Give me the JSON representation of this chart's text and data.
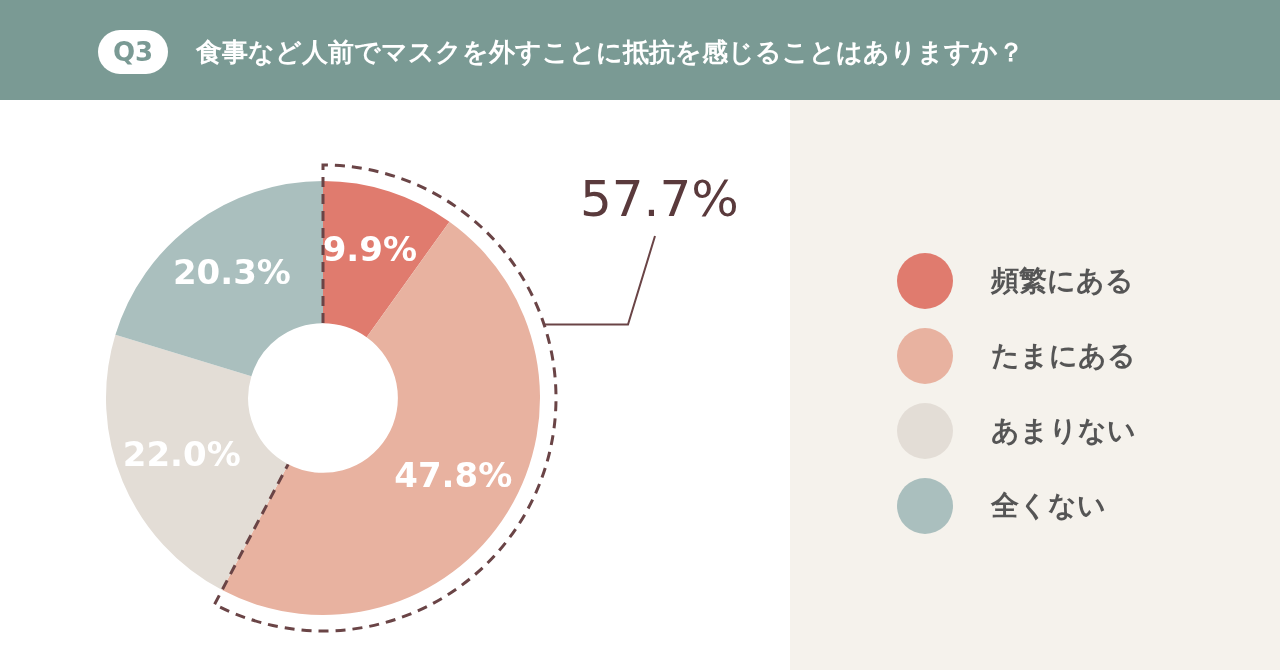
{
  "chart_data": {
    "type": "donut",
    "title": "食事など人前でマスクを外すことに抵抗を感じることはありますか？",
    "subtitle": "Q3",
    "categories": [
      "頻繁にある",
      "たまにある",
      "あまりない",
      "全くない"
    ],
    "values": [
      9.9,
      47.8,
      22.0,
      20.3
    ],
    "colors": [
      "#e07b6e",
      "#e8b2a0",
      "#e3ddd6",
      "#aabfbe"
    ],
    "value_labels": [
      "9.9%",
      "47.8%",
      "22.0%",
      "20.3%"
    ],
    "annotations": [
      "57.7%"
    ],
    "legend": "right"
  }
}
